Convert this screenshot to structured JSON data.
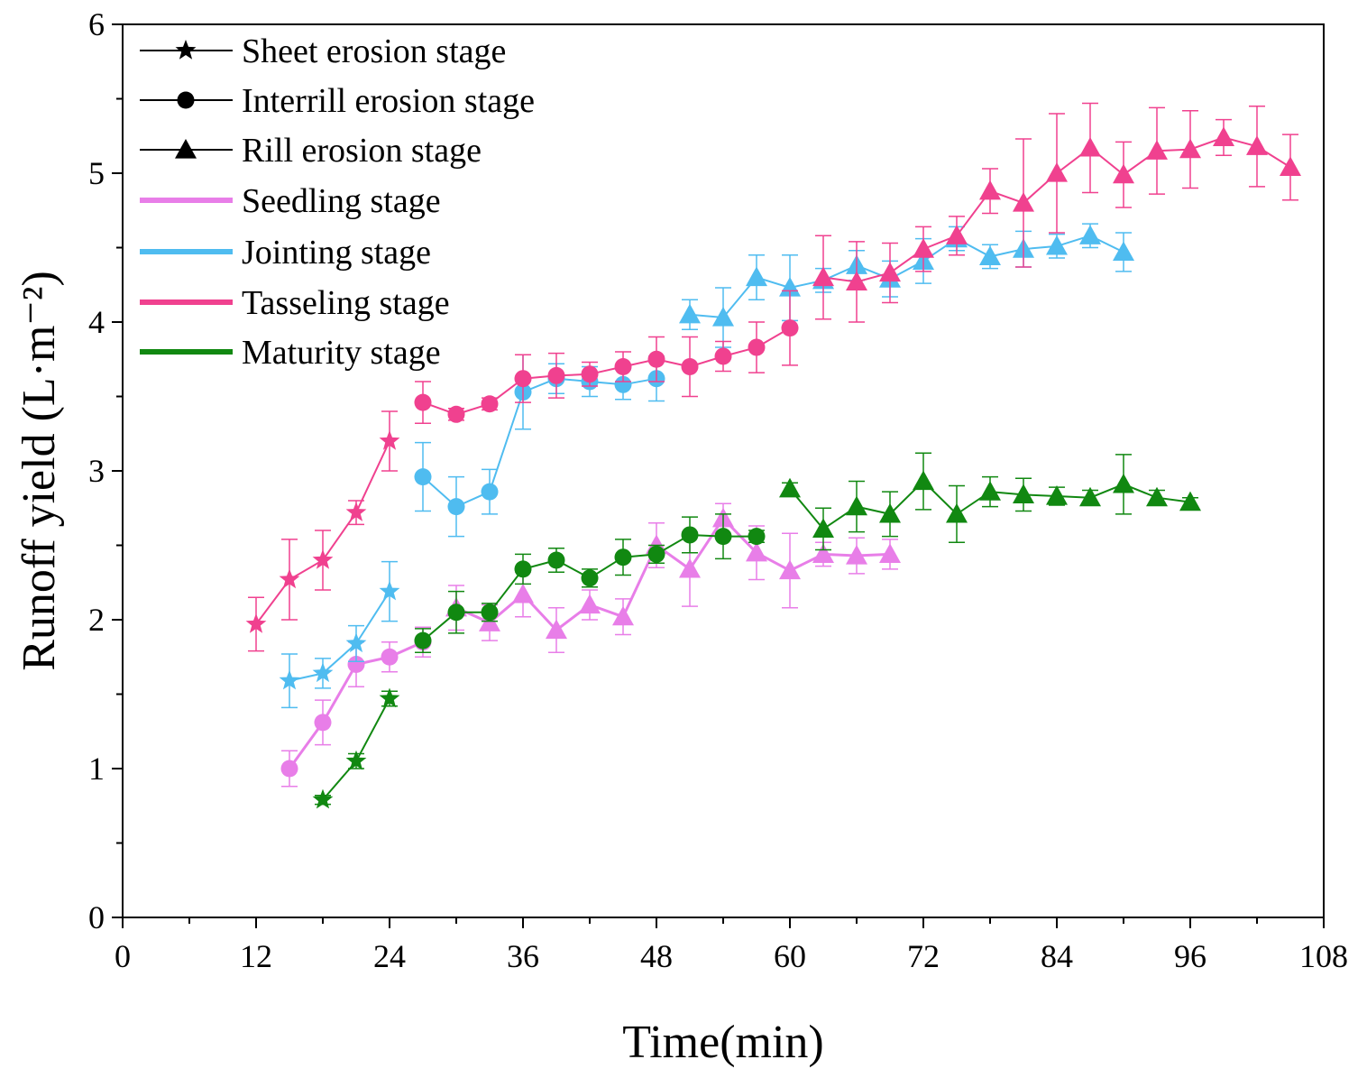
{
  "chart_data": {
    "type": "line",
    "xlabel": "Time(min)",
    "ylabel": "Runoff yield (L·m⁻²)",
    "xlim": [
      0,
      108
    ],
    "ylim": [
      0,
      6
    ],
    "xticks": [
      0,
      12,
      24,
      36,
      48,
      60,
      72,
      84,
      96,
      108
    ],
    "yticks": [
      0,
      1,
      2,
      3,
      4,
      5,
      6
    ],
    "legend_position": "top-left",
    "legend_markers": [
      {
        "label": "Sheet erosion stage",
        "marker": "star"
      },
      {
        "label": "Interrill erosion stage",
        "marker": "circle"
      },
      {
        "label": "Rill erosion stage",
        "marker": "triangle"
      }
    ],
    "legend_colors": [
      {
        "label": "Seedling stage",
        "color": "#e87ee8"
      },
      {
        "label": "Jointing stage",
        "color": "#4fbcf0"
      },
      {
        "label": "Tasseling stage",
        "color": "#f0418f"
      },
      {
        "label": "Maturity stage",
        "color": "#118811"
      }
    ],
    "series": [
      {
        "name": "Seedling stage",
        "color": "#e87ee8",
        "line_width": 3,
        "segments": [
          {
            "marker": "circle",
            "x": [
              15,
              18,
              21,
              24,
              27
            ],
            "y": [
              1.0,
              1.31,
              1.7,
              1.75,
              1.85
            ],
            "err": [
              0.12,
              0.15,
              0.15,
              0.1,
              0.1
            ]
          },
          {
            "marker": "triangle",
            "x": [
              30,
              33,
              36,
              39,
              42,
              45,
              48,
              51,
              54,
              57,
              60,
              63,
              66,
              69
            ],
            "y": [
              2.08,
              1.98,
              2.17,
              1.93,
              2.1,
              2.02,
              2.5,
              2.34,
              2.68,
              2.45,
              2.33,
              2.44,
              2.43,
              2.44
            ],
            "err": [
              0.15,
              0.12,
              0.15,
              0.15,
              0.1,
              0.12,
              0.15,
              0.25,
              0.1,
              0.18,
              0.25,
              0.08,
              0.12,
              0.1
            ]
          }
        ]
      },
      {
        "name": "Jointing stage",
        "color": "#4fbcf0",
        "line_width": 2,
        "segments": [
          {
            "marker": "star",
            "x": [
              15,
              18,
              21,
              24
            ],
            "y": [
              1.59,
              1.64,
              1.84,
              2.19
            ],
            "err": [
              0.18,
              0.1,
              0.12,
              0.2
            ]
          },
          {
            "marker": "circle",
            "x": [
              27,
              30,
              33,
              36,
              39,
              42,
              45,
              48
            ],
            "y": [
              2.96,
              2.76,
              2.86,
              3.53,
              3.62,
              3.6,
              3.58,
              3.62
            ],
            "err": [
              0.23,
              0.2,
              0.15,
              0.25,
              0.1,
              0.1,
              0.1,
              0.15
            ]
          },
          {
            "marker": "triangle",
            "x": [
              51,
              54,
              57,
              60,
              63,
              66,
              69,
              72,
              75,
              78,
              81,
              84,
              87,
              90
            ],
            "y": [
              4.05,
              4.03,
              4.3,
              4.23,
              4.28,
              4.38,
              4.29,
              4.41,
              4.56,
              4.44,
              4.49,
              4.51,
              4.58,
              4.47
            ],
            "err": [
              0.1,
              0.2,
              0.15,
              0.22,
              0.08,
              0.1,
              0.12,
              0.15,
              0.08,
              0.08,
              0.12,
              0.08,
              0.08,
              0.13
            ]
          }
        ]
      },
      {
        "name": "Tasseling stage",
        "color": "#f0418f",
        "line_width": 2,
        "segments": [
          {
            "marker": "star",
            "x": [
              12,
              15,
              18,
              21,
              24
            ],
            "y": [
              1.97,
              2.27,
              2.4,
              2.72,
              3.2
            ],
            "err": [
              0.18,
              0.27,
              0.2,
              0.08,
              0.2
            ]
          },
          {
            "marker": "circle",
            "x": [
              27,
              30,
              33,
              36,
              39,
              42,
              45,
              48,
              51,
              54,
              57,
              60
            ],
            "y": [
              3.46,
              3.38,
              3.45,
              3.62,
              3.64,
              3.65,
              3.7,
              3.75,
              3.7,
              3.77,
              3.83,
              3.96
            ],
            "err": [
              0.14,
              0.04,
              0.04,
              0.16,
              0.15,
              0.08,
              0.1,
              0.15,
              0.2,
              0.1,
              0.17,
              0.25
            ]
          },
          {
            "marker": "triangle",
            "x": [
              63,
              66,
              69,
              72,
              75,
              78,
              81,
              84,
              87,
              90,
              93,
              96,
              99,
              102,
              105
            ],
            "y": [
              4.3,
              4.27,
              4.33,
              4.49,
              4.58,
              4.88,
              4.8,
              5.0,
              5.17,
              4.99,
              5.15,
              5.16,
              5.24,
              5.18,
              5.04
            ],
            "err": [
              0.28,
              0.27,
              0.2,
              0.15,
              0.13,
              0.15,
              0.43,
              0.4,
              0.3,
              0.22,
              0.29,
              0.26,
              0.12,
              0.27,
              0.22
            ]
          }
        ]
      },
      {
        "name": "Maturity stage",
        "color": "#118811",
        "line_width": 2,
        "segments": [
          {
            "marker": "star",
            "x": [
              18,
              21,
              24
            ],
            "y": [
              0.79,
              1.05,
              1.47
            ],
            "err": [
              0.03,
              0.05,
              0.05
            ]
          },
          {
            "marker": "circle",
            "x": [
              27,
              30,
              33,
              36,
              39,
              42,
              45,
              48,
              51,
              54,
              57
            ],
            "y": [
              1.86,
              2.05,
              2.05,
              2.34,
              2.4,
              2.28,
              2.42,
              2.44,
              2.57,
              2.56,
              2.56
            ],
            "err": [
              0.08,
              0.14,
              0.06,
              0.1,
              0.08,
              0.06,
              0.12,
              0.06,
              0.12,
              0.15,
              0.04
            ]
          },
          {
            "marker": "triangle",
            "x": [
              60,
              63,
              66,
              69,
              72,
              75,
              78,
              81,
              84,
              87,
              90,
              93,
              96
            ],
            "y": [
              2.88,
              2.61,
              2.76,
              2.71,
              2.93,
              2.71,
              2.86,
              2.84,
              2.83,
              2.82,
              2.91,
              2.82,
              2.79
            ],
            "err": [
              0.04,
              0.14,
              0.17,
              0.15,
              0.19,
              0.19,
              0.1,
              0.11,
              0.06,
              0.05,
              0.2,
              0.05,
              0.03
            ]
          }
        ]
      }
    ]
  }
}
